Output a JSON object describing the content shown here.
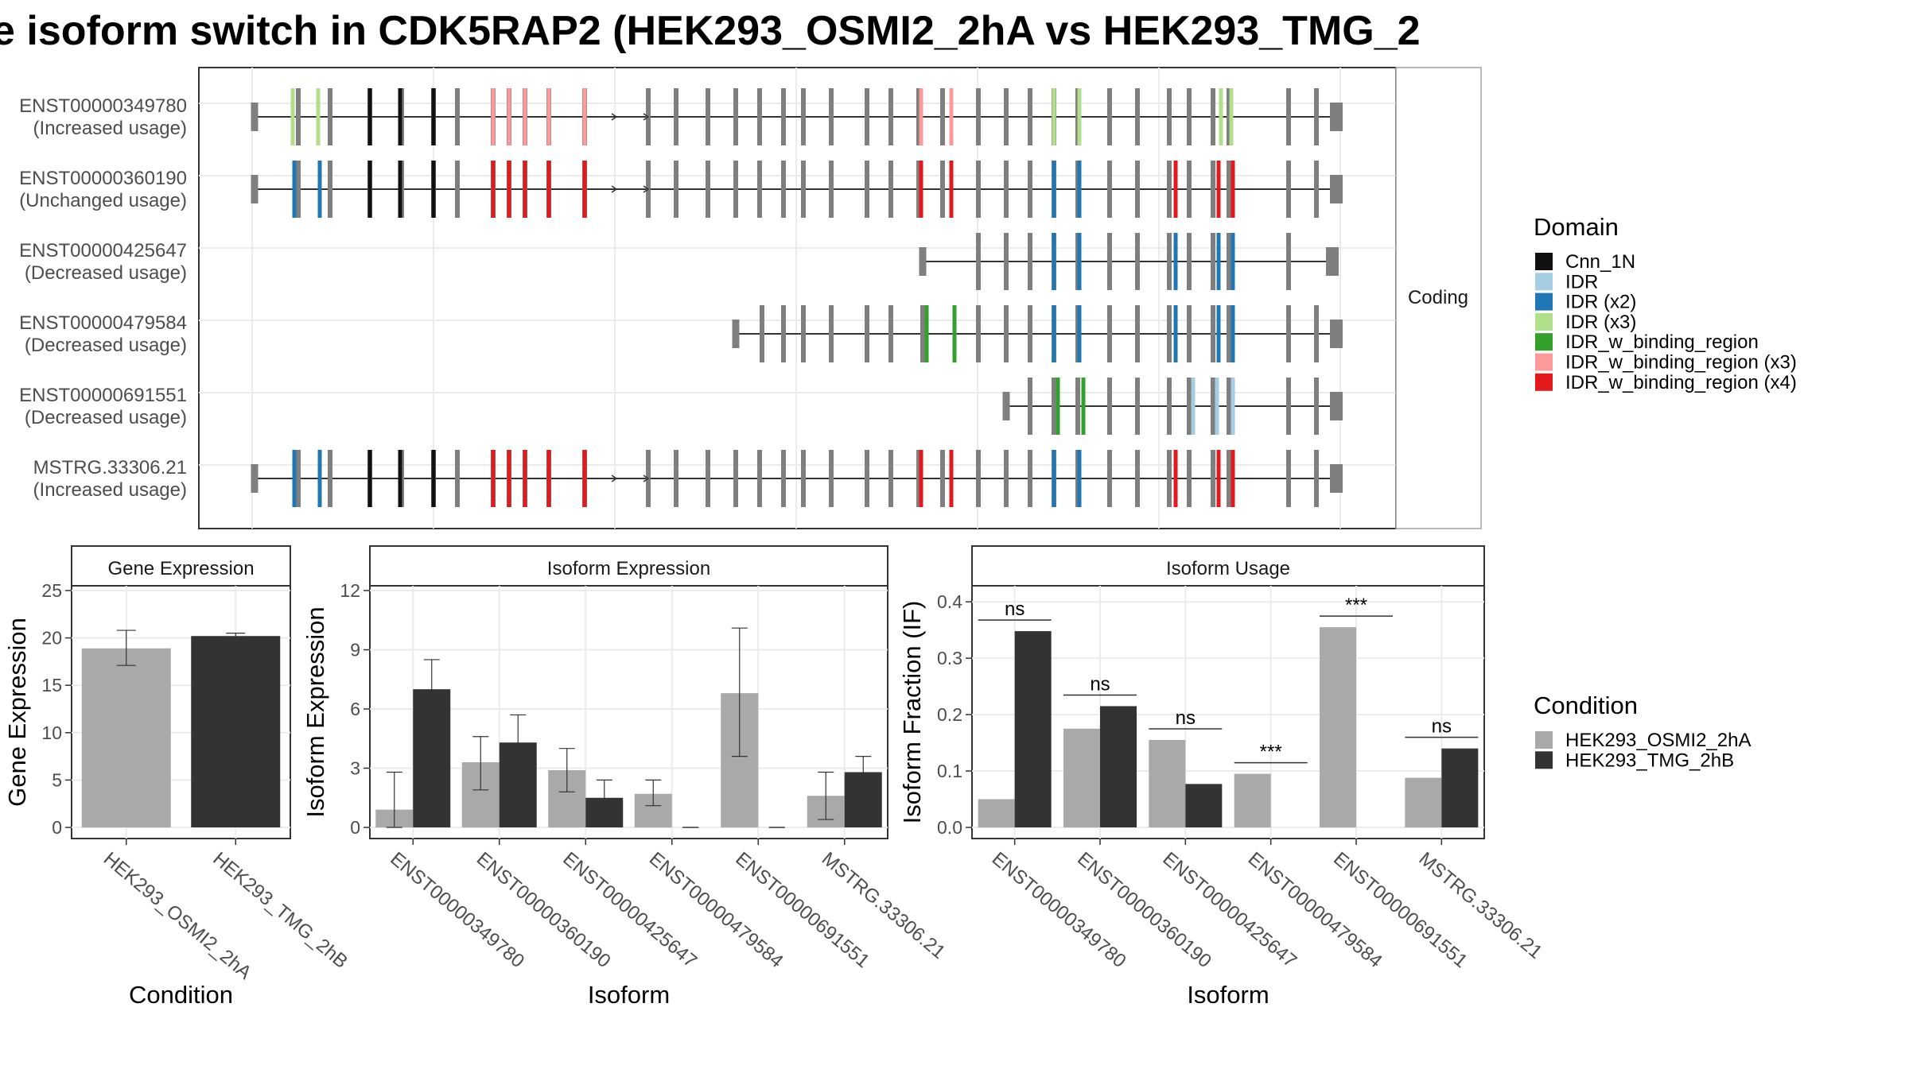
{
  "title": "e isoform switch in CDK5RAP2 (HEK293_OSMI2_2hA vs HEK293_TMG_2",
  "colors": {
    "cnn": "#111111",
    "idr": "#a6cee3",
    "idr2": "#1f78b4",
    "idr3": "#b2df8a",
    "idrbind": "#33a02c",
    "idrbind3": "#fb9a99",
    "idrbind4": "#e31a1c",
    "noncoding_exon": "#7f7f7f",
    "cond1": "#a9a9a9",
    "cond2": "#333333"
  },
  "structure": {
    "facet_label": "Coding",
    "isoforms": [
      {
        "id": "ENST00000349780",
        "usage": "(Increased usage)"
      },
      {
        "id": "ENST00000360190",
        "usage": "(Unchanged usage)"
      },
      {
        "id": "ENST00000425647",
        "usage": "(Decreased usage)"
      },
      {
        "id": "ENST00000479584",
        "usage": "(Decreased usage)"
      },
      {
        "id": "ENST00000691551",
        "usage": "(Decreased usage)"
      },
      {
        "id": "MSTRG.33306.21",
        "usage": "(Increased usage)"
      }
    ]
  },
  "legend_domain": {
    "title": "Domain",
    "items": [
      {
        "label": "Cnn_1N",
        "color": "#111111"
      },
      {
        "label": "IDR",
        "color": "#a6cee3"
      },
      {
        "label": "IDR (x2)",
        "color": "#1f78b4"
      },
      {
        "label": "IDR (x3)",
        "color": "#b2df8a"
      },
      {
        "label": "IDR_w_binding_region",
        "color": "#33a02c"
      },
      {
        "label": "IDR_w_binding_region (x3)",
        "color": "#fb9a99"
      },
      {
        "label": "IDR_w_binding_region (x4)",
        "color": "#e31a1c"
      }
    ]
  },
  "legend_condition": {
    "title": "Condition",
    "items": [
      {
        "label": "HEK293_OSMI2_2hA",
        "color": "#a9a9a9"
      },
      {
        "label": "HEK293_TMG_2hB",
        "color": "#333333"
      }
    ]
  },
  "chart_data": [
    {
      "type": "bar",
      "panel_title": "Gene Expression",
      "xlabel": "Condition",
      "ylabel": "Gene Expression",
      "ylim": [
        0,
        25
      ],
      "yticks": [
        0,
        5,
        10,
        15,
        20,
        25
      ],
      "categories": [
        "HEK293_OSMI2_2hA",
        "HEK293_TMG_2hB"
      ],
      "values": [
        18.9,
        20.2
      ],
      "error_low": [
        17.1,
        19.9
      ],
      "error_high": [
        20.8,
        20.5
      ]
    },
    {
      "type": "bar",
      "panel_title": "Isoform Expression",
      "xlabel": "Isoform",
      "ylabel": "Isoform Expression",
      "ylim": [
        0,
        12
      ],
      "yticks": [
        0,
        3,
        6,
        9,
        12
      ],
      "categories": [
        "ENST00000349780",
        "ENST00000360190",
        "ENST00000425647",
        "ENST00000479584",
        "ENST00000691551",
        "MSTRG.33306.21"
      ],
      "series": [
        {
          "name": "HEK293_OSMI2_2hA",
          "values": [
            0.9,
            3.3,
            2.9,
            1.7,
            6.8,
            1.6
          ],
          "error_low": [
            0.0,
            1.9,
            1.8,
            1.1,
            3.6,
            0.4
          ],
          "error_high": [
            2.8,
            4.6,
            4.0,
            2.4,
            10.1,
            2.8
          ]
        },
        {
          "name": "HEK293_TMG_2hB",
          "values": [
            7.0,
            4.3,
            1.5,
            0.0,
            0.0,
            2.8
          ],
          "error_low": [
            5.5,
            2.9,
            0.6,
            0.0,
            0.0,
            2.0
          ],
          "error_high": [
            8.5,
            5.7,
            2.4,
            0.0,
            0.0,
            3.6
          ]
        }
      ]
    },
    {
      "type": "bar",
      "panel_title": "Isoform Usage",
      "xlabel": "Isoform",
      "ylabel": "Isoform Fraction (IF)",
      "ylim": [
        0,
        0.42
      ],
      "yticks": [
        0.0,
        0.1,
        0.2,
        0.3,
        0.4
      ],
      "categories": [
        "ENST00000349780",
        "ENST00000360190",
        "ENST00000425647",
        "ENST00000479584",
        "ENST00000691551",
        "MSTRG.33306.21"
      ],
      "series": [
        {
          "name": "HEK293_OSMI2_2hA",
          "values": [
            0.05,
            0.175,
            0.155,
            0.095,
            0.355,
            0.088
          ]
        },
        {
          "name": "HEK293_TMG_2hB",
          "values": [
            0.348,
            0.215,
            0.077,
            0.0,
            0.0,
            0.14
          ]
        }
      ],
      "significance": [
        "ns",
        "ns",
        "ns",
        "***",
        "***",
        "ns"
      ]
    }
  ]
}
